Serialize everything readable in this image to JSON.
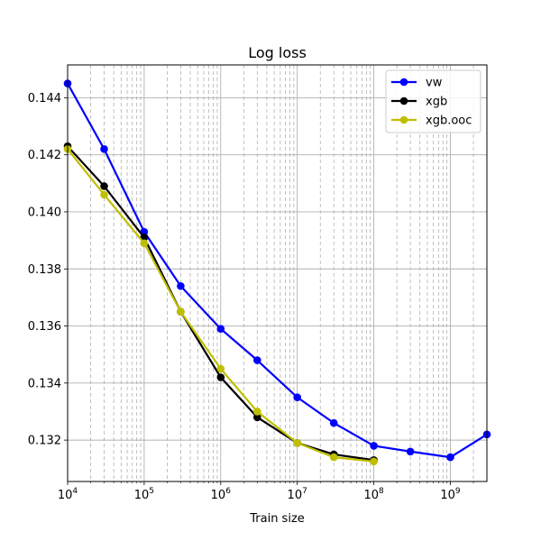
{
  "chart_data": {
    "type": "line",
    "title": "Log loss",
    "xlabel": "Train size",
    "ylabel": "",
    "xscale": "log",
    "xlim": [
      10000,
      3000000000
    ],
    "ylim": [
      0.13055,
      0.14515
    ],
    "grid": true,
    "legend_position": "top-right",
    "x_ticks": [
      {
        "value": 10000,
        "base": "10",
        "exp": "4"
      },
      {
        "value": 100000,
        "base": "10",
        "exp": "5"
      },
      {
        "value": 1000000,
        "base": "10",
        "exp": "6"
      },
      {
        "value": 10000000,
        "base": "10",
        "exp": "7"
      },
      {
        "value": 100000000,
        "base": "10",
        "exp": "8"
      },
      {
        "value": 1000000000,
        "base": "10",
        "exp": "9"
      }
    ],
    "y_ticks": [
      {
        "value": 0.132,
        "label": "0.132"
      },
      {
        "value": 0.134,
        "label": "0.134"
      },
      {
        "value": 0.136,
        "label": "0.136"
      },
      {
        "value": 0.138,
        "label": "0.138"
      },
      {
        "value": 0.14,
        "label": "0.140"
      },
      {
        "value": 0.142,
        "label": "0.142"
      },
      {
        "value": 0.144,
        "label": "0.144"
      }
    ],
    "series": [
      {
        "name": "vw",
        "color": "#0000ff",
        "x": [
          10000,
          30000,
          100000,
          300000,
          1000000,
          3000000,
          10000000,
          30000000,
          100000000,
          300000000,
          1000000000,
          3000000000
        ],
        "values": [
          0.1445,
          0.1422,
          0.1393,
          0.1374,
          0.1359,
          0.1348,
          0.1335,
          0.1326,
          0.1318,
          0.1316,
          0.1314,
          0.1322
        ]
      },
      {
        "name": "xgb",
        "color": "#000000",
        "x": [
          10000,
          30000,
          100000,
          300000,
          1000000,
          3000000,
          10000000,
          30000000,
          100000000
        ],
        "values": [
          0.1423,
          0.1409,
          0.1391,
          0.1365,
          0.1342,
          0.1328,
          0.1319,
          0.1315,
          0.1313
        ]
      },
      {
        "name": "xgb.ooc",
        "color": "#bfbf00",
        "x": [
          10000,
          30000,
          100000,
          300000,
          1000000,
          3000000,
          10000000,
          30000000,
          100000000
        ],
        "values": [
          0.1422,
          0.1406,
          0.1389,
          0.1365,
          0.1345,
          0.133,
          0.1319,
          0.1314,
          0.13125
        ]
      }
    ]
  }
}
